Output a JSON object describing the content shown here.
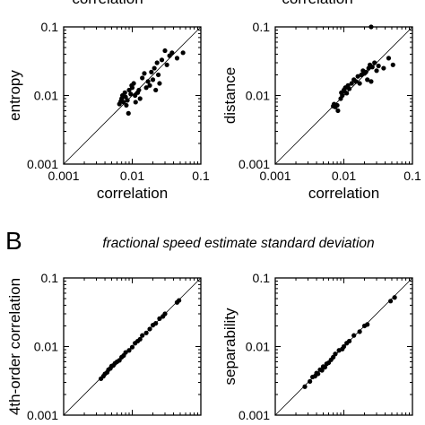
{
  "figure": {
    "panel_b_letter": "B",
    "panel_b_heading": "fractional speed estimate standard deviation",
    "panel_a_top_titles": [
      "correlation",
      "correlation"
    ]
  },
  "chart_data": [
    {
      "type": "scatter",
      "xlabel": "correlation",
      "ylabel": "entropy",
      "xscale": "log",
      "yscale": "log",
      "xlim": [
        0.001,
        0.1
      ],
      "ylim": [
        0.001,
        0.1
      ],
      "xticks": [
        "0.001",
        "0.01",
        "0.1"
      ],
      "yticks": [
        "0.001",
        "0.01",
        "0.1"
      ],
      "identity_line": true,
      "points": [
        [
          0.0065,
          0.0075
        ],
        [
          0.0068,
          0.0082
        ],
        [
          0.007,
          0.009
        ],
        [
          0.0072,
          0.01
        ],
        [
          0.0075,
          0.008
        ],
        [
          0.0078,
          0.011
        ],
        [
          0.008,
          0.0095
        ],
        [
          0.0082,
          0.0072
        ],
        [
          0.0085,
          0.0085
        ],
        [
          0.0088,
          0.0055
        ],
        [
          0.009,
          0.012
        ],
        [
          0.0095,
          0.0105
        ],
        [
          0.0098,
          0.014
        ],
        [
          0.01,
          0.013
        ],
        [
          0.0105,
          0.015
        ],
        [
          0.011,
          0.01
        ],
        [
          0.0112,
          0.008
        ],
        [
          0.012,
          0.011
        ],
        [
          0.0125,
          0.012
        ],
        [
          0.013,
          0.009
        ],
        [
          0.014,
          0.018
        ],
        [
          0.015,
          0.021
        ],
        [
          0.016,
          0.013
        ],
        [
          0.017,
          0.016
        ],
        [
          0.018,
          0.014
        ],
        [
          0.019,
          0.022
        ],
        [
          0.02,
          0.017
        ],
        [
          0.021,
          0.025
        ],
        [
          0.022,
          0.012
        ],
        [
          0.023,
          0.03
        ],
        [
          0.024,
          0.02
        ],
        [
          0.025,
          0.015
        ],
        [
          0.027,
          0.033
        ],
        [
          0.03,
          0.045
        ],
        [
          0.032,
          0.028
        ],
        [
          0.035,
          0.038
        ],
        [
          0.038,
          0.042
        ],
        [
          0.045,
          0.035
        ],
        [
          0.055,
          0.042
        ]
      ]
    },
    {
      "type": "scatter",
      "xlabel": "correlation",
      "ylabel": "distance",
      "xscale": "log",
      "yscale": "log",
      "xlim": [
        0.001,
        0.1
      ],
      "ylim": [
        0.001,
        0.1
      ],
      "xticks": [
        "0.001",
        "0.01",
        "0.1"
      ],
      "yticks": [
        "0.001",
        "0.01",
        "0.1"
      ],
      "identity_line": true,
      "points": [
        [
          0.007,
          0.007
        ],
        [
          0.0072,
          0.0075
        ],
        [
          0.0075,
          0.0068
        ],
        [
          0.008,
          0.0072
        ],
        [
          0.0082,
          0.006
        ],
        [
          0.009,
          0.009
        ],
        [
          0.0092,
          0.011
        ],
        [
          0.0095,
          0.01
        ],
        [
          0.01,
          0.012
        ],
        [
          0.0102,
          0.0115
        ],
        [
          0.0105,
          0.013
        ],
        [
          0.011,
          0.0108
        ],
        [
          0.0115,
          0.014
        ],
        [
          0.012,
          0.0125
        ],
        [
          0.013,
          0.015
        ],
        [
          0.014,
          0.017
        ],
        [
          0.015,
          0.016
        ],
        [
          0.016,
          0.019
        ],
        [
          0.017,
          0.015
        ],
        [
          0.018,
          0.02
        ],
        [
          0.019,
          0.023
        ],
        [
          0.02,
          0.021
        ],
        [
          0.021,
          0.022
        ],
        [
          0.022,
          0.017
        ],
        [
          0.023,
          0.025
        ],
        [
          0.024,
          0.028
        ],
        [
          0.025,
          0.016
        ],
        [
          0.026,
          0.026
        ],
        [
          0.028,
          0.03
        ],
        [
          0.03,
          0.023
        ],
        [
          0.032,
          0.027
        ],
        [
          0.038,
          0.025
        ],
        [
          0.045,
          0.035
        ],
        [
          0.052,
          0.028
        ],
        [
          0.025,
          0.1
        ]
      ]
    },
    {
      "type": "scatter",
      "xlabel": "",
      "ylabel": "4th-order correlation",
      "xscale": "log",
      "yscale": "log",
      "xlim": [
        0.001,
        0.1
      ],
      "ylim": [
        0.001,
        0.1
      ],
      "xticks": [],
      "yticks": [
        "0.001",
        "0.01",
        "0.1"
      ],
      "identity_line": true,
      "points": [
        [
          0.0035,
          0.0034
        ],
        [
          0.0038,
          0.0037
        ],
        [
          0.004,
          0.004
        ],
        [
          0.0043,
          0.0042
        ],
        [
          0.0045,
          0.0046
        ],
        [
          0.0048,
          0.0048
        ],
        [
          0.005,
          0.0052
        ],
        [
          0.0053,
          0.0053
        ],
        [
          0.0056,
          0.0057
        ],
        [
          0.006,
          0.006
        ],
        [
          0.0065,
          0.0063
        ],
        [
          0.007,
          0.007
        ],
        [
          0.0075,
          0.0074
        ],
        [
          0.008,
          0.0082
        ],
        [
          0.009,
          0.0088
        ],
        [
          0.01,
          0.0098
        ],
        [
          0.011,
          0.0112
        ],
        [
          0.012,
          0.012
        ],
        [
          0.013,
          0.0128
        ],
        [
          0.014,
          0.0145
        ],
        [
          0.016,
          0.0158
        ],
        [
          0.018,
          0.018
        ],
        [
          0.02,
          0.0205
        ],
        [
          0.022,
          0.0218
        ],
        [
          0.025,
          0.0255
        ],
        [
          0.028,
          0.0275
        ],
        [
          0.03,
          0.03
        ],
        [
          0.045,
          0.044
        ],
        [
          0.048,
          0.047
        ]
      ]
    },
    {
      "type": "scatter",
      "xlabel": "",
      "ylabel": "separability",
      "xscale": "log",
      "yscale": "log",
      "xlim": [
        0.001,
        0.1
      ],
      "ylim": [
        0.001,
        0.1
      ],
      "xticks": [],
      "yticks": [
        "0.001",
        "0.01",
        "0.1"
      ],
      "identity_line": true,
      "points": [
        [
          0.0027,
          0.0026
        ],
        [
          0.0032,
          0.0031
        ],
        [
          0.0035,
          0.0036
        ],
        [
          0.0038,
          0.0037
        ],
        [
          0.004,
          0.0041
        ],
        [
          0.0042,
          0.004
        ],
        [
          0.0045,
          0.0046
        ],
        [
          0.0048,
          0.0045
        ],
        [
          0.005,
          0.0051
        ],
        [
          0.0053,
          0.005
        ],
        [
          0.0056,
          0.0056
        ],
        [
          0.006,
          0.0058
        ],
        [
          0.0065,
          0.0064
        ],
        [
          0.007,
          0.007
        ],
        [
          0.0075,
          0.0078
        ],
        [
          0.0085,
          0.0088
        ],
        [
          0.0095,
          0.0092
        ],
        [
          0.01,
          0.01
        ],
        [
          0.011,
          0.0112
        ],
        [
          0.012,
          0.012
        ],
        [
          0.014,
          0.0145
        ],
        [
          0.017,
          0.0165
        ],
        [
          0.02,
          0.02
        ],
        [
          0.022,
          0.021
        ],
        [
          0.048,
          0.046
        ],
        [
          0.055,
          0.052
        ]
      ]
    }
  ]
}
